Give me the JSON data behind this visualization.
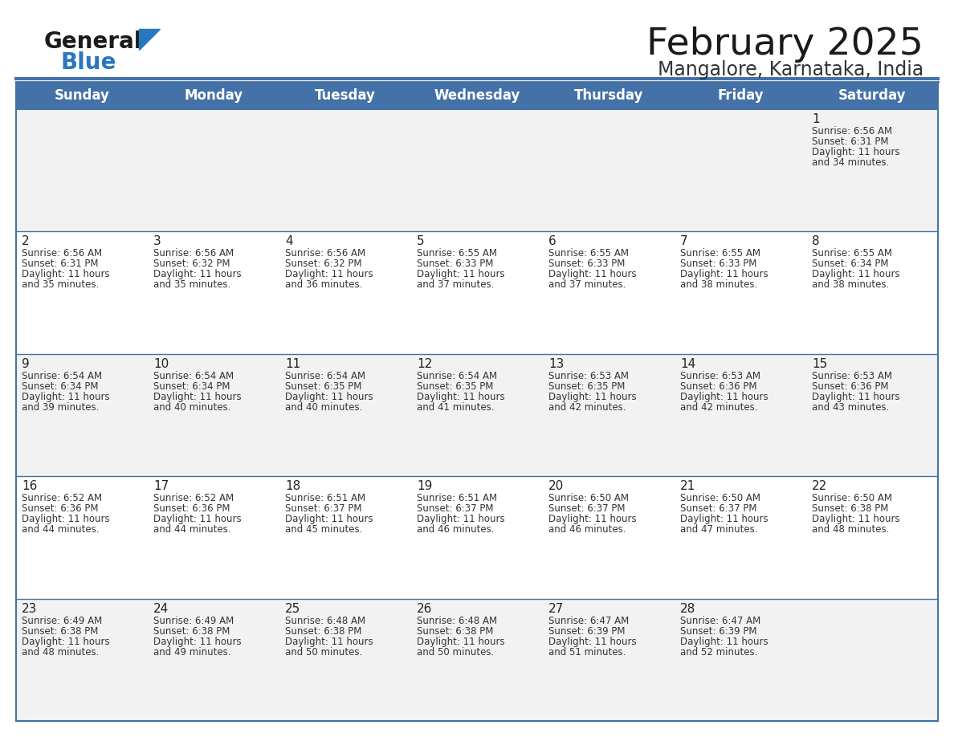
{
  "title": "February 2025",
  "subtitle": "Mangalore, Karnataka, India",
  "days_of_week": [
    "Sunday",
    "Monday",
    "Tuesday",
    "Wednesday",
    "Thursday",
    "Friday",
    "Saturday"
  ],
  "header_bg": "#4472a8",
  "header_text_color": "#ffffff",
  "cell_bg_light": "#f2f2f2",
  "cell_bg_white": "#ffffff",
  "border_color": "#4472a8",
  "text_color": "#333333",
  "day_num_color": "#222222",
  "logo_general_color": "#1a1a1a",
  "logo_blue_color": "#2878c0",
  "calendar_data": [
    {
      "day": 1,
      "row": 0,
      "col": 6,
      "sunrise": "6:56 AM",
      "sunset": "6:31 PM",
      "daylight_min": "34"
    },
    {
      "day": 2,
      "row": 1,
      "col": 0,
      "sunrise": "6:56 AM",
      "sunset": "6:31 PM",
      "daylight_min": "35"
    },
    {
      "day": 3,
      "row": 1,
      "col": 1,
      "sunrise": "6:56 AM",
      "sunset": "6:32 PM",
      "daylight_min": "35"
    },
    {
      "day": 4,
      "row": 1,
      "col": 2,
      "sunrise": "6:56 AM",
      "sunset": "6:32 PM",
      "daylight_min": "36"
    },
    {
      "day": 5,
      "row": 1,
      "col": 3,
      "sunrise": "6:55 AM",
      "sunset": "6:33 PM",
      "daylight_min": "37"
    },
    {
      "day": 6,
      "row": 1,
      "col": 4,
      "sunrise": "6:55 AM",
      "sunset": "6:33 PM",
      "daylight_min": "37"
    },
    {
      "day": 7,
      "row": 1,
      "col": 5,
      "sunrise": "6:55 AM",
      "sunset": "6:33 PM",
      "daylight_min": "38"
    },
    {
      "day": 8,
      "row": 1,
      "col": 6,
      "sunrise": "6:55 AM",
      "sunset": "6:34 PM",
      "daylight_min": "38"
    },
    {
      "day": 9,
      "row": 2,
      "col": 0,
      "sunrise": "6:54 AM",
      "sunset": "6:34 PM",
      "daylight_min": "39"
    },
    {
      "day": 10,
      "row": 2,
      "col": 1,
      "sunrise": "6:54 AM",
      "sunset": "6:34 PM",
      "daylight_min": "40"
    },
    {
      "day": 11,
      "row": 2,
      "col": 2,
      "sunrise": "6:54 AM",
      "sunset": "6:35 PM",
      "daylight_min": "40"
    },
    {
      "day": 12,
      "row": 2,
      "col": 3,
      "sunrise": "6:54 AM",
      "sunset": "6:35 PM",
      "daylight_min": "41"
    },
    {
      "day": 13,
      "row": 2,
      "col": 4,
      "sunrise": "6:53 AM",
      "sunset": "6:35 PM",
      "daylight_min": "42"
    },
    {
      "day": 14,
      "row": 2,
      "col": 5,
      "sunrise": "6:53 AM",
      "sunset": "6:36 PM",
      "daylight_min": "42"
    },
    {
      "day": 15,
      "row": 2,
      "col": 6,
      "sunrise": "6:53 AM",
      "sunset": "6:36 PM",
      "daylight_min": "43"
    },
    {
      "day": 16,
      "row": 3,
      "col": 0,
      "sunrise": "6:52 AM",
      "sunset": "6:36 PM",
      "daylight_min": "44"
    },
    {
      "day": 17,
      "row": 3,
      "col": 1,
      "sunrise": "6:52 AM",
      "sunset": "6:36 PM",
      "daylight_min": "44"
    },
    {
      "day": 18,
      "row": 3,
      "col": 2,
      "sunrise": "6:51 AM",
      "sunset": "6:37 PM",
      "daylight_min": "45"
    },
    {
      "day": 19,
      "row": 3,
      "col": 3,
      "sunrise": "6:51 AM",
      "sunset": "6:37 PM",
      "daylight_min": "46"
    },
    {
      "day": 20,
      "row": 3,
      "col": 4,
      "sunrise": "6:50 AM",
      "sunset": "6:37 PM",
      "daylight_min": "46"
    },
    {
      "day": 21,
      "row": 3,
      "col": 5,
      "sunrise": "6:50 AM",
      "sunset": "6:37 PM",
      "daylight_min": "47"
    },
    {
      "day": 22,
      "row": 3,
      "col": 6,
      "sunrise": "6:50 AM",
      "sunset": "6:38 PM",
      "daylight_min": "48"
    },
    {
      "day": 23,
      "row": 4,
      "col": 0,
      "sunrise": "6:49 AM",
      "sunset": "6:38 PM",
      "daylight_min": "48"
    },
    {
      "day": 24,
      "row": 4,
      "col": 1,
      "sunrise": "6:49 AM",
      "sunset": "6:38 PM",
      "daylight_min": "49"
    },
    {
      "day": 25,
      "row": 4,
      "col": 2,
      "sunrise": "6:48 AM",
      "sunset": "6:38 PM",
      "daylight_min": "50"
    },
    {
      "day": 26,
      "row": 4,
      "col": 3,
      "sunrise": "6:48 AM",
      "sunset": "6:38 PM",
      "daylight_min": "50"
    },
    {
      "day": 27,
      "row": 4,
      "col": 4,
      "sunrise": "6:47 AM",
      "sunset": "6:39 PM",
      "daylight_min": "51"
    },
    {
      "day": 28,
      "row": 4,
      "col": 5,
      "sunrise": "6:47 AM",
      "sunset": "6:39 PM",
      "daylight_min": "52"
    }
  ],
  "num_rows": 5,
  "num_cols": 7,
  "fig_width": 11.88,
  "fig_height": 9.18,
  "title_fontsize": 34,
  "subtitle_fontsize": 17,
  "header_fontsize": 12,
  "day_num_fontsize": 11,
  "cell_text_fontsize": 8.5
}
